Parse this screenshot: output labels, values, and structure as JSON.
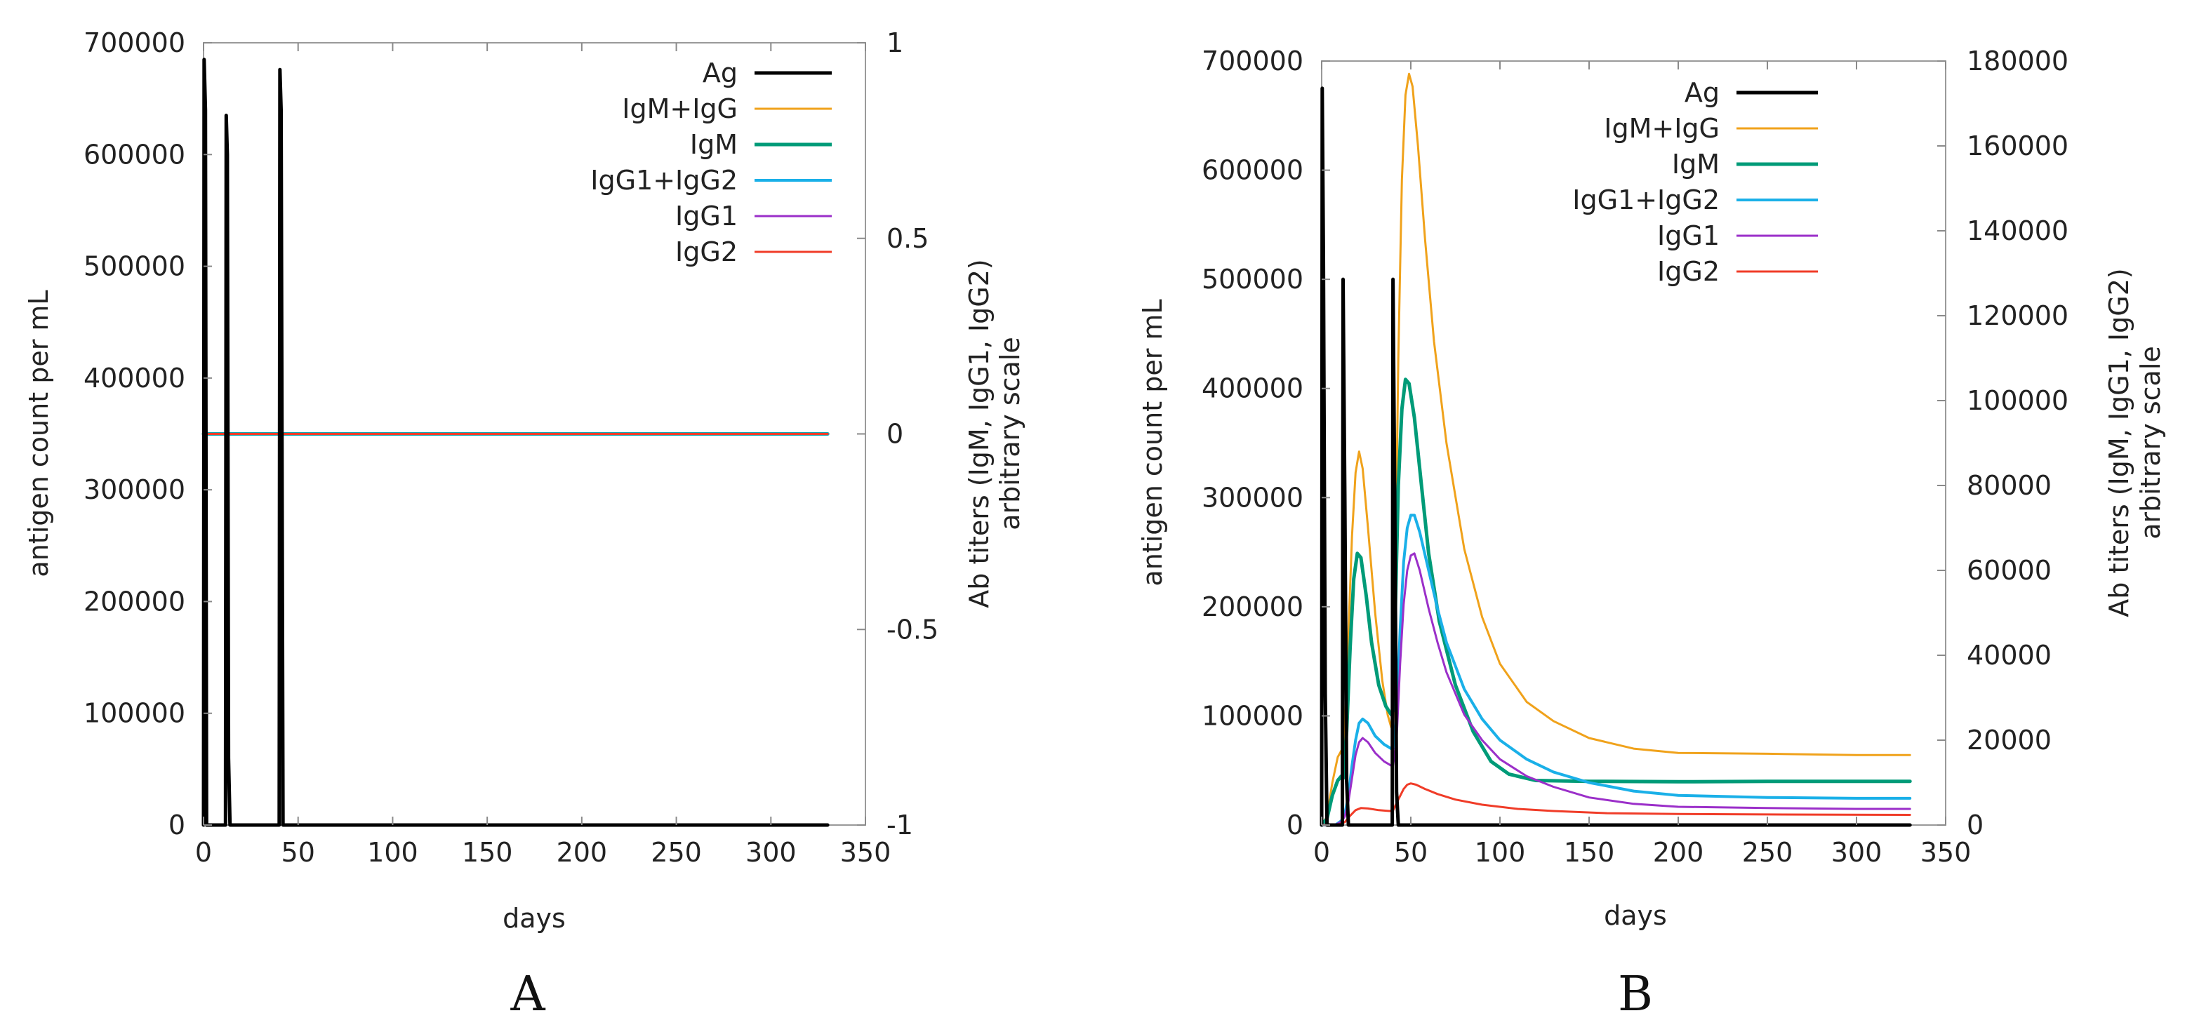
{
  "chart_data": [
    {
      "panel": "A",
      "type": "line",
      "xlabel": "days",
      "ylabel": "antigen count per mL",
      "y2label_line1": "Ab titers (IgM, IgG1, IgG2)",
      "y2label_line2": "arbitrary scale",
      "xlim": [
        0,
        350
      ],
      "ylim": [
        0,
        700000
      ],
      "y2lim": [
        -1,
        1
      ],
      "xticks": [
        0,
        50,
        100,
        150,
        200,
        250,
        300,
        350
      ],
      "yticks": [
        0,
        100000,
        200000,
        300000,
        400000,
        500000,
        600000,
        700000
      ],
      "y2ticks": [
        "-1",
        "-0.5",
        "0",
        "0.5",
        "1"
      ],
      "y2tick_values": [
        -1,
        -0.5,
        0,
        0.5,
        1
      ],
      "legend_position": "top-right",
      "series": [
        {
          "name": "Ag",
          "color": "#000000",
          "width": 5,
          "axis": "y",
          "points": [
            [
              0,
              0
            ],
            [
              0.3,
              685000
            ],
            [
              1,
              640000
            ],
            [
              1.6,
              0
            ],
            [
              11.6,
              0
            ],
            [
              12,
              635000
            ],
            [
              12.6,
              600000
            ],
            [
              13.2,
              60000
            ],
            [
              14,
              0
            ],
            [
              40,
              0
            ],
            [
              40.4,
              676000
            ],
            [
              41,
              640000
            ],
            [
              42,
              0
            ],
            [
              330,
              0
            ]
          ]
        },
        {
          "name": "IgM+IgG",
          "color": "#f0a21b",
          "width": 3,
          "axis": "y2",
          "points": [
            [
              0,
              0
            ],
            [
              330,
              0
            ]
          ]
        },
        {
          "name": "IgM",
          "color": "#009b78",
          "width": 5,
          "axis": "y2",
          "points": [
            [
              0,
              0
            ],
            [
              330,
              0
            ]
          ]
        },
        {
          "name": "IgG1+IgG2",
          "color": "#1ab0e8",
          "width": 4,
          "axis": "y2",
          "points": [
            [
              0,
              0
            ],
            [
              330,
              0
            ]
          ]
        },
        {
          "name": "IgG1",
          "color": "#9b2fc9",
          "width": 3,
          "axis": "y2",
          "points": [
            [
              0,
              0
            ],
            [
              330,
              0
            ]
          ]
        },
        {
          "name": "IgG2",
          "color": "#f03c28",
          "width": 3,
          "axis": "y2",
          "points": [
            [
              0,
              0
            ],
            [
              330,
              0
            ]
          ]
        }
      ]
    },
    {
      "panel": "B",
      "type": "line",
      "xlabel": "days",
      "ylabel": "antigen count per mL",
      "y2label_line1": "Ab titers (IgM, IgG1, IgG2)",
      "y2label_line2": "arbitrary scale",
      "xlim": [
        0,
        350
      ],
      "ylim": [
        0,
        700000
      ],
      "y2lim": [
        0,
        180000
      ],
      "xticks": [
        0,
        50,
        100,
        150,
        200,
        250,
        300,
        350
      ],
      "yticks": [
        0,
        100000,
        200000,
        300000,
        400000,
        500000,
        600000,
        700000
      ],
      "y2ticks": [
        "0",
        "20000",
        "40000",
        "60000",
        "80000",
        "100000",
        "120000",
        "140000",
        "160000",
        "180000"
      ],
      "y2tick_values": [
        0,
        20000,
        40000,
        60000,
        80000,
        100000,
        120000,
        140000,
        160000,
        180000
      ],
      "legend_position": "top-right",
      "series": [
        {
          "name": "Ag",
          "color": "#000000",
          "width": 5,
          "axis": "y",
          "points": [
            [
              0,
              0
            ],
            [
              0.3,
              675000
            ],
            [
              1,
              520000
            ],
            [
              2,
              120000
            ],
            [
              3,
              0
            ],
            [
              11.6,
              0
            ],
            [
              12,
              500000
            ],
            [
              13,
              300000
            ],
            [
              14,
              40000
            ],
            [
              15,
              0
            ],
            [
              39.6,
              0
            ],
            [
              40,
              500000
            ],
            [
              41,
              300000
            ],
            [
              42,
              30000
            ],
            [
              43,
              0
            ],
            [
              330,
              0
            ]
          ]
        },
        {
          "name": "IgM+IgG",
          "color": "#f0a21b",
          "width": 3,
          "axis": "y2",
          "points": [
            [
              0,
              0
            ],
            [
              3,
              2000
            ],
            [
              6,
              10000
            ],
            [
              9,
              16000
            ],
            [
              11,
              17500
            ],
            [
              12,
              17000
            ],
            [
              13,
              25000
            ],
            [
              15,
              45000
            ],
            [
              17,
              68000
            ],
            [
              19,
              83000
            ],
            [
              21,
              88000
            ],
            [
              23,
              84000
            ],
            [
              26,
              70000
            ],
            [
              30,
              50000
            ],
            [
              34,
              34000
            ],
            [
              37,
              26000
            ],
            [
              39,
              23000
            ],
            [
              40,
              24000
            ],
            [
              41,
              48000
            ],
            [
              43,
              110000
            ],
            [
              45,
              152000
            ],
            [
              47,
              172000
            ],
            [
              49,
              177000
            ],
            [
              51,
              174000
            ],
            [
              54,
              160000
            ],
            [
              58,
              138000
            ],
            [
              63,
              114000
            ],
            [
              70,
              90000
            ],
            [
              80,
              65000
            ],
            [
              90,
              49000
            ],
            [
              100,
              38000
            ],
            [
              115,
              29000
            ],
            [
              130,
              24500
            ],
            [
              150,
              20500
            ],
            [
              175,
              18000
            ],
            [
              200,
              17000
            ],
            [
              250,
              16800
            ],
            [
              300,
              16500
            ],
            [
              330,
              16500
            ]
          ]
        },
        {
          "name": "IgM",
          "color": "#009b78",
          "width": 5,
          "axis": "y2",
          "points": [
            [
              0,
              0
            ],
            [
              3,
              1500
            ],
            [
              6,
              7000
            ],
            [
              9,
              10500
            ],
            [
              11,
              11500
            ],
            [
              12,
              11000
            ],
            [
              14,
              22000
            ],
            [
              16,
              42000
            ],
            [
              18,
              58000
            ],
            [
              20,
              64000
            ],
            [
              22,
              63000
            ],
            [
              25,
              54000
            ],
            [
              28,
              43000
            ],
            [
              32,
              33000
            ],
            [
              36,
              28000
            ],
            [
              39,
              26000
            ],
            [
              40,
              27000
            ],
            [
              41,
              45000
            ],
            [
              43,
              80000
            ],
            [
              45,
              98000
            ],
            [
              47,
              105000
            ],
            [
              49,
              104000
            ],
            [
              52,
              96000
            ],
            [
              56,
              80000
            ],
            [
              60,
              64000
            ],
            [
              66,
              48000
            ],
            [
              75,
              33000
            ],
            [
              85,
              22000
            ],
            [
              95,
              15000
            ],
            [
              105,
              12000
            ],
            [
              120,
              10500
            ],
            [
              150,
              10300
            ],
            [
              200,
              10200
            ],
            [
              250,
              10300
            ],
            [
              330,
              10300
            ]
          ]
        },
        {
          "name": "IgG1+IgG2",
          "color": "#1ab0e8",
          "width": 4,
          "axis": "y2",
          "points": [
            [
              0,
              0
            ],
            [
              8,
              100
            ],
            [
              11,
              1000
            ],
            [
              13,
              2500
            ],
            [
              15,
              7000
            ],
            [
              17,
              14000
            ],
            [
              19,
              20000
            ],
            [
              21,
              24000
            ],
            [
              23,
              25000
            ],
            [
              26,
              24000
            ],
            [
              30,
              21000
            ],
            [
              35,
              19000
            ],
            [
              39,
              18000
            ],
            [
              40,
              18000
            ],
            [
              42,
              26000
            ],
            [
              44,
              46000
            ],
            [
              46,
              62000
            ],
            [
              48,
              70000
            ],
            [
              50,
              73000
            ],
            [
              52,
              73000
            ],
            [
              55,
              69000
            ],
            [
              60,
              60000
            ],
            [
              65,
              51000
            ],
            [
              70,
              43000
            ],
            [
              80,
              32000
            ],
            [
              90,
              25000
            ],
            [
              100,
              20000
            ],
            [
              115,
              15500
            ],
            [
              130,
              12500
            ],
            [
              150,
              10000
            ],
            [
              175,
              8000
            ],
            [
              200,
              7000
            ],
            [
              250,
              6500
            ],
            [
              300,
              6300
            ],
            [
              330,
              6300
            ]
          ]
        },
        {
          "name": "IgG1",
          "color": "#9b2fc9",
          "width": 3,
          "axis": "y2",
          "points": [
            [
              0,
              0
            ],
            [
              8,
              100
            ],
            [
              11,
              800
            ],
            [
              13,
              2000
            ],
            [
              15,
              5500
            ],
            [
              17,
              11000
            ],
            [
              19,
              16500
            ],
            [
              21,
              19500
            ],
            [
              23,
              20500
            ],
            [
              26,
              19500
            ],
            [
              30,
              17000
            ],
            [
              35,
              15000
            ],
            [
              39,
              14000
            ],
            [
              40,
              14000
            ],
            [
              42,
              20000
            ],
            [
              44,
              38000
            ],
            [
              46,
              52000
            ],
            [
              48,
              60000
            ],
            [
              50,
              63500
            ],
            [
              52,
              64000
            ],
            [
              55,
              60000
            ],
            [
              60,
              51000
            ],
            [
              65,
              43000
            ],
            [
              70,
              36000
            ],
            [
              80,
              26000
            ],
            [
              90,
              20000
            ],
            [
              100,
              15500
            ],
            [
              115,
              11500
            ],
            [
              130,
              9000
            ],
            [
              150,
              6500
            ],
            [
              175,
              5000
            ],
            [
              200,
              4300
            ],
            [
              250,
              4000
            ],
            [
              300,
              3800
            ],
            [
              330,
              3800
            ]
          ]
        },
        {
          "name": "IgG2",
          "color": "#f03c28",
          "width": 3,
          "axis": "y2",
          "points": [
            [
              0,
              0
            ],
            [
              10,
              200
            ],
            [
              13,
              700
            ],
            [
              16,
              2200
            ],
            [
              19,
              3500
            ],
            [
              22,
              4000
            ],
            [
              26,
              3900
            ],
            [
              32,
              3500
            ],
            [
              38,
              3300
            ],
            [
              40,
              3400
            ],
            [
              43,
              6000
            ],
            [
              46,
              8500
            ],
            [
              48,
              9500
            ],
            [
              50,
              9800
            ],
            [
              53,
              9500
            ],
            [
              58,
              8500
            ],
            [
              65,
              7300
            ],
            [
              75,
              6000
            ],
            [
              90,
              4800
            ],
            [
              110,
              3800
            ],
            [
              130,
              3300
            ],
            [
              160,
              2800
            ],
            [
              200,
              2600
            ],
            [
              250,
              2500
            ],
            [
              330,
              2400
            ]
          ]
        }
      ]
    }
  ]
}
